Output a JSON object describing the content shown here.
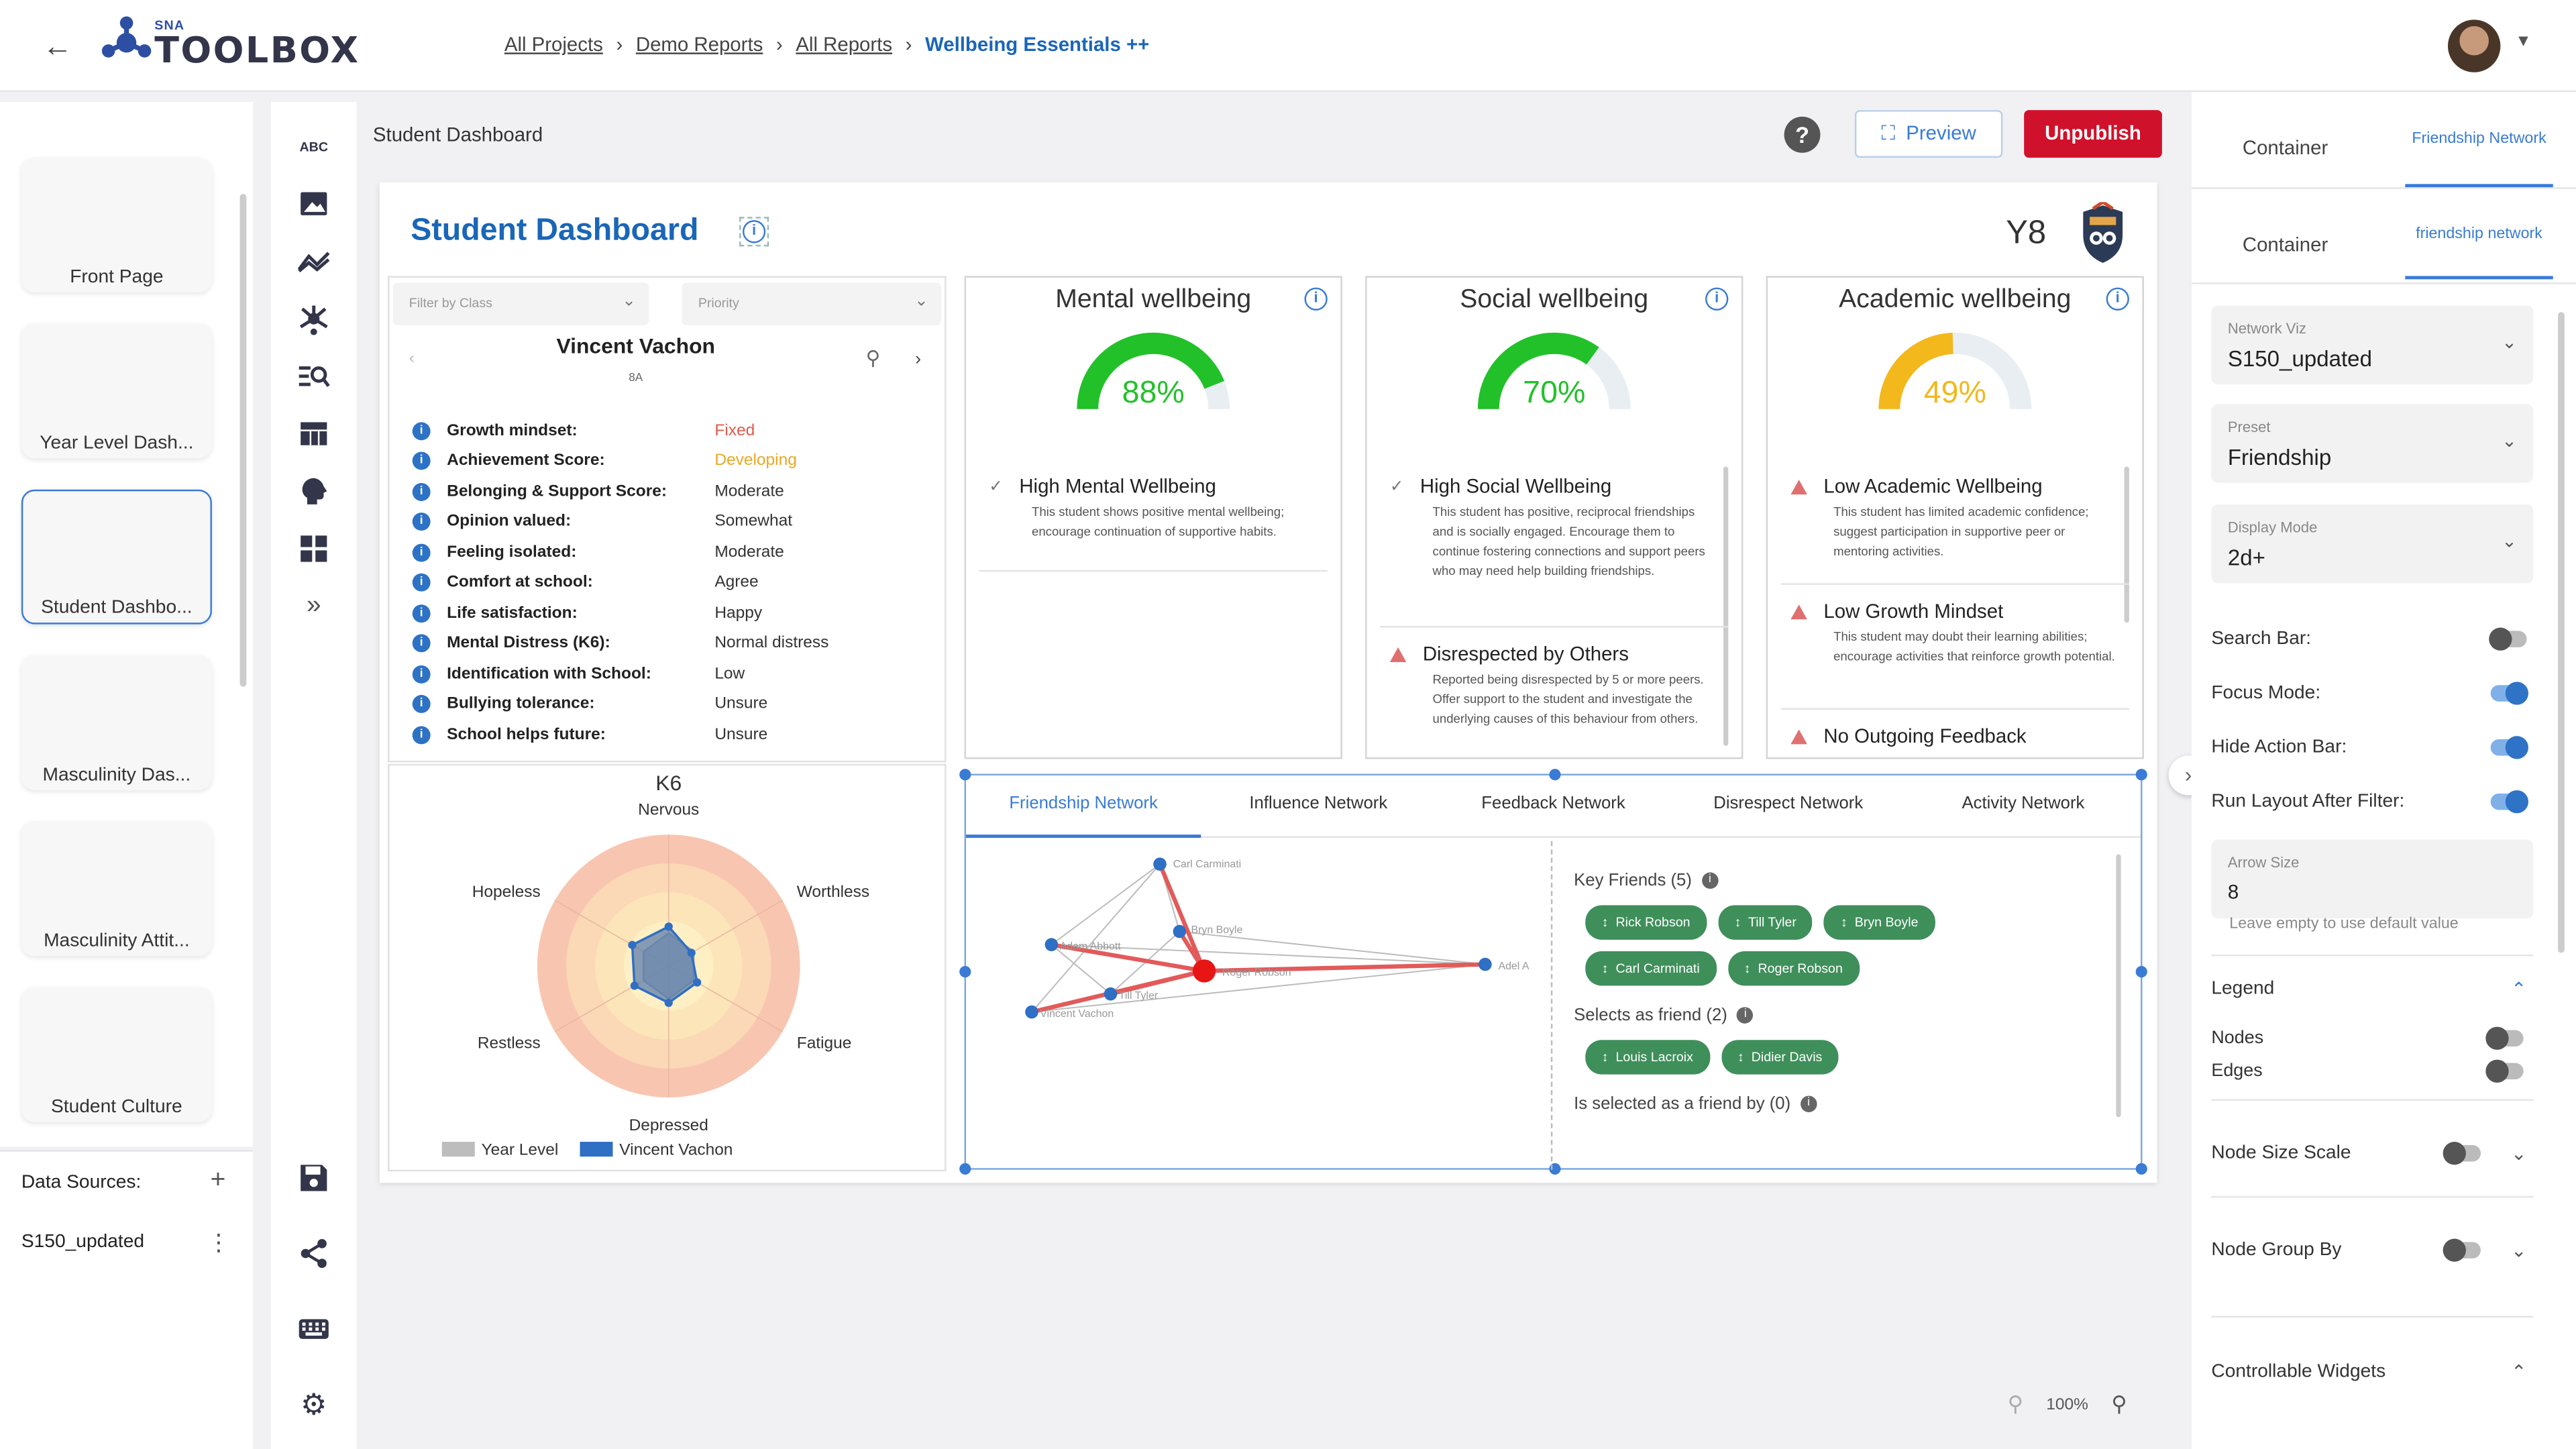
{
  "header": {
    "logo_small": "SNA",
    "logo_main": "TOOLBOX",
    "breadcrumbs": [
      "All Projects",
      "Demo Reports",
      "All Reports"
    ],
    "breadcrumb_current": "Wellbeing Essentials ++"
  },
  "pages": [
    "Front Page",
    "Year Level Dash...",
    "Student Dashbo...",
    "Masculinity Das...",
    "Masculinity Attit...",
    "Student Culture"
  ],
  "data_sources": {
    "label": "Data Sources:",
    "source": "S150_updated"
  },
  "rail_icons": [
    "text-abc-icon",
    "image-icon",
    "line-chart-icon",
    "network-icon",
    "search-list-icon",
    "table-icon",
    "brain-icon",
    "dashboard-icon",
    "expand-icon",
    "save-icon",
    "share-icon",
    "keyboard-icon",
    "settings-icon"
  ],
  "rail_abc": "ABC",
  "toolbar": {
    "title": "Student Dashboard",
    "help": "?",
    "preview": "Preview",
    "unpublish": "Unpublish"
  },
  "dashboard": {
    "title": "Student Dashboard",
    "year": "Y8",
    "filter_class": "Filter by Class",
    "filter_priority": "Priority",
    "student_name": "Vincent Vachon",
    "student_sub": "8A",
    "attributes": [
      {
        "k": "Growth mindset:",
        "v": "Fixed",
        "color": "#e25b4b"
      },
      {
        "k": "Achievement Score:",
        "v": "Developing",
        "color": "#e9a825"
      },
      {
        "k": "Belonging & Support Score:",
        "v": "Moderate",
        "color": "#333333"
      },
      {
        "k": "Opinion valued:",
        "v": "Somewhat",
        "color": "#333333"
      },
      {
        "k": "Feeling isolated:",
        "v": "Moderate",
        "color": "#333333"
      },
      {
        "k": "Comfort at school:",
        "v": "Agree",
        "color": "#333333"
      },
      {
        "k": "Life satisfaction:",
        "v": "Happy",
        "color": "#333333"
      },
      {
        "k": "Mental Distress (K6):",
        "v": "Normal distress",
        "color": "#333333"
      },
      {
        "k": "Identification with School:",
        "v": "Low",
        "color": "#333333"
      },
      {
        "k": "Bullying tolerance:",
        "v": "Unsure",
        "color": "#333333"
      },
      {
        "k": "School helps future:",
        "v": "Unsure",
        "color": "#333333"
      }
    ],
    "k6": {
      "title": "K6",
      "axes": [
        "Nervous",
        "Worthless",
        "Fatigue",
        "Depressed",
        "Restless",
        "Hopeless"
      ],
      "legend": [
        "Year Level",
        "Vincent Vachon"
      ],
      "legend_colors": [
        "#bdbdbd",
        "#2f6fc4"
      ]
    },
    "cards": [
      {
        "title": "Mental wellbeing",
        "pct": "88%",
        "value": 0.88,
        "color": "#22c12a",
        "items": [
          {
            "icon": "check",
            "title": "High Mental Wellbeing",
            "body": "This student shows positive mental wellbeing; encourage continuation of supportive habits."
          }
        ]
      },
      {
        "title": "Social wellbeing",
        "pct": "70%",
        "value": 0.7,
        "color": "#22c12a",
        "items": [
          {
            "icon": "check",
            "title": "High Social Wellbeing",
            "body": "This student has positive, reciprocal friendships and is socially engaged. Encourage them to continue fostering connections and support peers who may need help building friendships."
          },
          {
            "icon": "warn",
            "title": "Disrespected by Others",
            "body": "Reported being disrespected by 5 or more peers. Offer support to the student and investigate the underlying causes of this behaviour from others."
          }
        ]
      },
      {
        "title": "Academic wellbeing",
        "pct": "49%",
        "value": 0.49,
        "color": "#f2b81c",
        "items": [
          {
            "icon": "warn",
            "title": "Low Academic Wellbeing",
            "body": "This student has limited academic confidence; suggest participation in supportive peer or mentoring activities."
          },
          {
            "icon": "warn",
            "title": "Low Growth Mindset",
            "body": "This student may doubt their learning abilities; encourage activities that reinforce growth potential."
          },
          {
            "icon": "warn",
            "title": "No Outgoing Feedback",
            "body": ""
          }
        ]
      }
    ],
    "network": {
      "tabs": [
        "Friendship Network",
        "Influence Network",
        "Feedback Network",
        "Disrespect Network",
        "Activity Network"
      ],
      "node_labels": [
        "Carl Carminati",
        "Bryn Boyle",
        "Adam Abbott",
        "Roger Robson",
        "Adel A",
        "Till Tyler",
        "Vincent Vachon"
      ],
      "key_friends_label": "Key Friends (5)",
      "key_friends": [
        "Rick Robson",
        "Till Tyler",
        "Bryn Boyle",
        "Carl Carminati",
        "Roger Robson"
      ],
      "selects_label": "Selects as friend (2)",
      "selects": [
        "Louis Lacroix",
        "Didier Davis"
      ],
      "selected_by_label": "Is selected as a friend by (0)"
    },
    "zoom": "100%"
  },
  "right_panel": {
    "tabs_top": [
      "Container",
      "Friendship Network"
    ],
    "tabs_second": [
      "Container",
      "friendship network"
    ],
    "selects": [
      {
        "label": "Network Viz",
        "value": "S150_updated"
      },
      {
        "label": "Preset",
        "value": "Friendship"
      },
      {
        "label": "Display Mode",
        "value": "2d+"
      }
    ],
    "toggles": [
      {
        "label": "Search Bar:",
        "on": false
      },
      {
        "label": "Focus Mode:",
        "on": true
      },
      {
        "label": "Hide Action Bar:",
        "on": true
      },
      {
        "label": "Run Layout After Filter:",
        "on": true
      }
    ],
    "arrow_size_label": "Arrow Size",
    "arrow_size": "8",
    "arrow_hint": "Leave empty to use default value",
    "legend_label": "Legend",
    "legend_nodes": "Nodes",
    "legend_edges": "Edges",
    "node_size_scale": "Node Size Scale",
    "node_group_by": "Node Group By",
    "controllable_widgets": "Controllable Widgets"
  }
}
